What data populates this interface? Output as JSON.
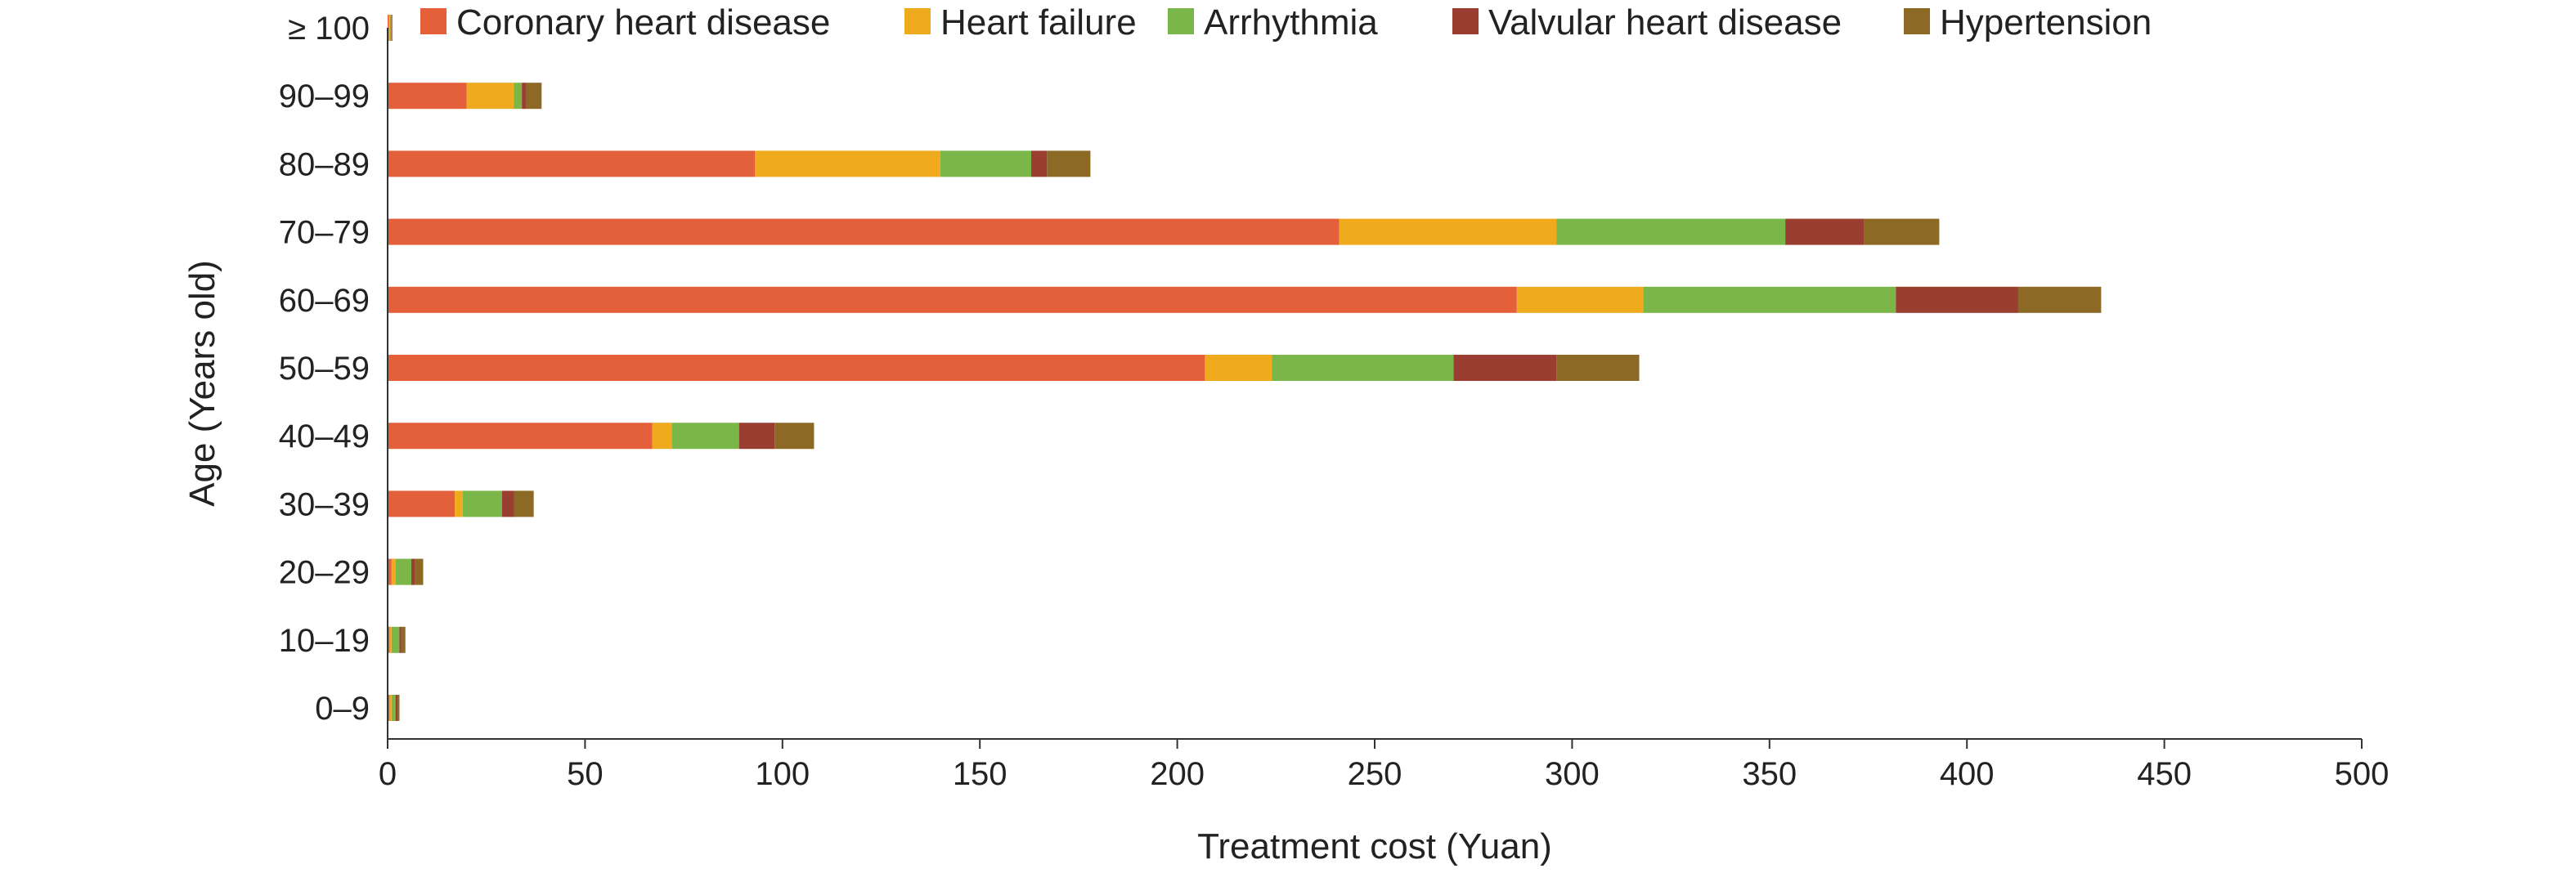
{
  "chart_data": {
    "type": "bar",
    "orientation": "horizontal",
    "stacked": true,
    "title": "",
    "xlabel": "Treatment cost (Yuan)",
    "ylabel": "Age (Years old)",
    "xlim": [
      0,
      500
    ],
    "x_ticks": [
      "0",
      "50",
      "100",
      "150",
      "200",
      "250",
      "300",
      "350",
      "400",
      "450",
      "500"
    ],
    "categories": [
      "0–9",
      "10–19",
      "20–29",
      "30–39",
      "40–49",
      "50–59",
      "60–69",
      "70–79",
      "80–89",
      "90–99",
      "≥ 100"
    ],
    "legend_position": "top",
    "grid": false,
    "series": [
      {
        "name": "Coronary heart disease",
        "color": "#E3603A",
        "values": [
          0.5,
          0.5,
          1,
          17,
          67,
          207,
          286,
          241,
          93,
          20,
          0.3
        ]
      },
      {
        "name": "Heart failure",
        "color": "#EFAA1E",
        "values": [
          0.5,
          0.5,
          1,
          2,
          5,
          17,
          32,
          55,
          47,
          12,
          0.3
        ]
      },
      {
        "name": "Arrhythmia",
        "color": "#7AB648",
        "values": [
          1,
          2,
          4,
          10,
          17,
          46,
          64,
          58,
          23,
          2,
          0.3
        ]
      },
      {
        "name": "Valvular heart disease",
        "color": "#9A3E32",
        "values": [
          0.5,
          0.5,
          1,
          3,
          9,
          26,
          31,
          20,
          4,
          1,
          0.1
        ]
      },
      {
        "name": "Hypertension",
        "color": "#8C6A26",
        "values": [
          0.5,
          1,
          2,
          5,
          10,
          21,
          21,
          19,
          11,
          4,
          0.2
        ]
      }
    ]
  }
}
